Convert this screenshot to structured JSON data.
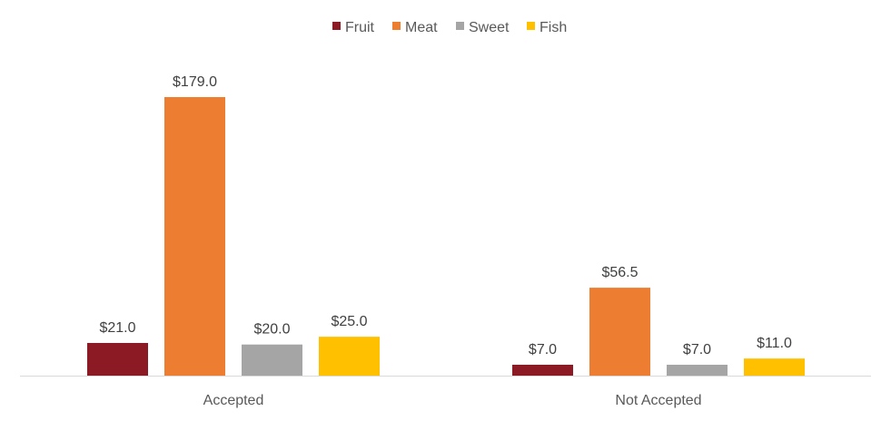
{
  "chart_data": {
    "type": "bar",
    "categories": [
      "Accepted",
      "Not Accepted"
    ],
    "series": [
      {
        "name": "Fruit",
        "color": "#8B1A24",
        "values": [
          21.0,
          7.0
        ],
        "labels": [
          "$21.0",
          "$7.0"
        ]
      },
      {
        "name": "Meat",
        "color": "#ED7D31",
        "values": [
          179.0,
          56.5
        ],
        "labels": [
          "$179.0",
          "$56.5"
        ]
      },
      {
        "name": "Sweet",
        "color": "#A5A5A5",
        "values": [
          20.0,
          7.0
        ],
        "labels": [
          "$20.0",
          "$7.0"
        ]
      },
      {
        "name": "Fish",
        "color": "#FFC000",
        "values": [
          25.0,
          11.0
        ],
        "labels": [
          "$25.0",
          "$11.0"
        ]
      }
    ],
    "ylim": [
      0,
      200
    ],
    "legend_position": "top-center",
    "grid": false,
    "axis_color": "#D9D9D9"
  }
}
